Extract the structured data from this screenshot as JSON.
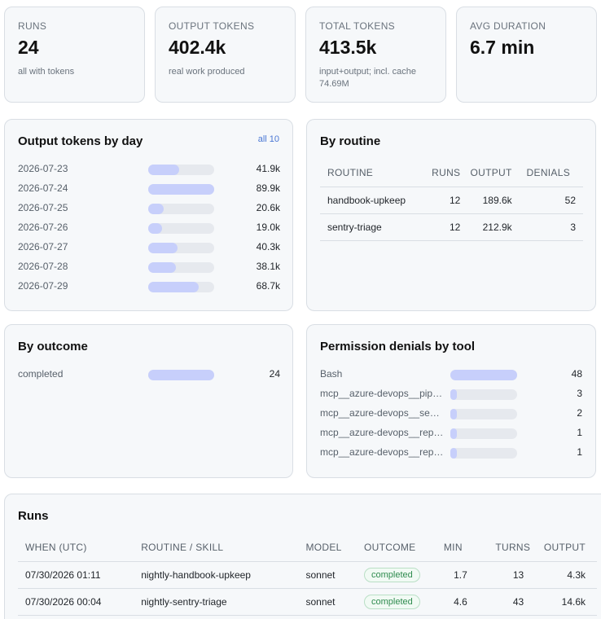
{
  "stats": [
    {
      "label": "RUNS",
      "value": "24",
      "sub": "all with tokens"
    },
    {
      "label": "OUTPUT TOKENS",
      "value": "402.4k",
      "sub": "real work produced"
    },
    {
      "label": "TOTAL TOKENS",
      "value": "413.5k",
      "sub": "input+output; incl. cache 74.69M"
    },
    {
      "label": "AVG DURATION",
      "value": "6.7 min",
      "sub": ""
    }
  ],
  "output_by_day": {
    "title": "Output tokens by day",
    "link": "all 10",
    "rows": [
      {
        "label": "2026-07-23",
        "value": "41.9k",
        "fraction": 0.466
      },
      {
        "label": "2026-07-24",
        "value": "89.9k",
        "fraction": 1.0
      },
      {
        "label": "2026-07-25",
        "value": "20.6k",
        "fraction": 0.229
      },
      {
        "label": "2026-07-26",
        "value": "19.0k",
        "fraction": 0.211
      },
      {
        "label": "2026-07-27",
        "value": "40.3k",
        "fraction": 0.448
      },
      {
        "label": "2026-07-28",
        "value": "38.1k",
        "fraction": 0.424
      },
      {
        "label": "2026-07-29",
        "value": "68.7k",
        "fraction": 0.764
      }
    ]
  },
  "by_routine": {
    "title": "By routine",
    "headers": {
      "routine": "ROUTINE",
      "runs": "RUNS",
      "output": "OUTPUT",
      "denials": "DENIALS"
    },
    "rows": [
      {
        "routine": "handbook-upkeep",
        "runs": "12",
        "output": "189.6k",
        "denials": "52"
      },
      {
        "routine": "sentry-triage",
        "runs": "12",
        "output": "212.9k",
        "denials": "3"
      }
    ]
  },
  "by_outcome": {
    "title": "By outcome",
    "rows": [
      {
        "label": "completed",
        "value": "24",
        "fraction": 1.0
      }
    ]
  },
  "denials_by_tool": {
    "title": "Permission denials by tool",
    "rows": [
      {
        "label": "Bash",
        "value": "48",
        "fraction": 1.0
      },
      {
        "label": "mcp__azure-devops__pipel...",
        "value": "3",
        "fraction": 0.0625
      },
      {
        "label": "mcp__azure-devops__sear...",
        "value": "2",
        "fraction": 0.0417
      },
      {
        "label": "mcp__azure-devops__repo...",
        "value": "1",
        "fraction": 0.0208
      },
      {
        "label": "mcp__azure-devops__repo...",
        "value": "1",
        "fraction": 0.0208
      }
    ]
  },
  "runs": {
    "title": "Runs",
    "headers": {
      "when": "WHEN (UTC)",
      "routine": "ROUTINE / SKILL",
      "model": "MODEL",
      "outcome": "OUTCOME",
      "min": "MIN",
      "turns": "TURNS",
      "output": "OUTPUT"
    },
    "rows": [
      {
        "when": "07/30/2026 01:11",
        "routine": "nightly-handbook-upkeep",
        "model": "sonnet",
        "outcome": "completed",
        "min": "1.7",
        "turns": "13",
        "output": "4.3k"
      },
      {
        "when": "07/30/2026 00:04",
        "routine": "nightly-sentry-triage",
        "model": "sonnet",
        "outcome": "completed",
        "min": "4.6",
        "turns": "43",
        "output": "14.6k"
      }
    ]
  }
}
